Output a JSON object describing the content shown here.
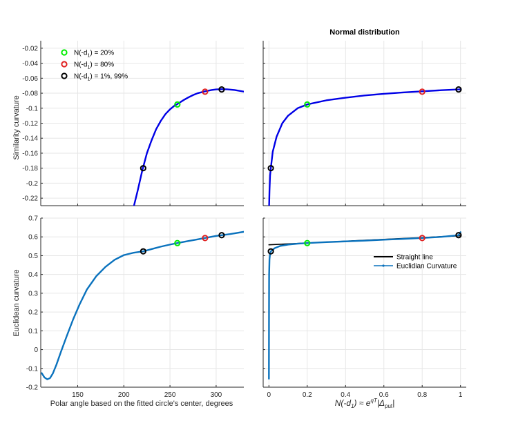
{
  "colors": {
    "curve_dark": "#0000E6",
    "curve_light": "#0A72BD",
    "marker_green": "#00EE00",
    "marker_red": "#E02020",
    "marker_black": "#000000",
    "grid": "#E6E6E6",
    "axis": "#262626",
    "straight_line": "#000000"
  },
  "chart_data": [
    {
      "id": "top-left",
      "type": "line",
      "title": "",
      "xlabel": "",
      "ylabel": "Similarity curvature",
      "xlim": [
        110,
        330
      ],
      "ylim": [
        -0.23,
        -0.01
      ],
      "xticks": [
        150,
        200,
        250,
        300
      ],
      "xtick_labels_visible": false,
      "yticks": [
        -0.22,
        -0.2,
        -0.18,
        -0.16,
        -0.14,
        -0.12,
        -0.1,
        -0.08,
        -0.06,
        -0.04,
        -0.02
      ],
      "ytick_labels": [
        "-0.22",
        "-0.2",
        "-0.18",
        "-0.16",
        "-0.14",
        "-0.12",
        "-0.1",
        "-0.08",
        "-0.06",
        "-0.04",
        "-0.02"
      ],
      "grid": true,
      "series": [
        {
          "color_key": "curve_dark",
          "points": [
            [
              211,
              -0.23
            ],
            [
              215,
              -0.21
            ],
            [
              220,
              -0.183
            ],
            [
              225,
              -0.16
            ],
            [
              230,
              -0.143
            ],
            [
              235,
              -0.128
            ],
            [
              240,
              -0.117
            ],
            [
              245,
              -0.108
            ],
            [
              250,
              -0.1015
            ],
            [
              255,
              -0.0965
            ],
            [
              258,
              -0.0945
            ],
            [
              265,
              -0.089
            ],
            [
              270,
              -0.0855
            ],
            [
              275,
              -0.0825
            ],
            [
              280,
              -0.08
            ],
            [
              288,
              -0.0775
            ],
            [
              295,
              -0.0758
            ],
            [
              300,
              -0.075
            ],
            [
              306,
              -0.0746
            ],
            [
              312,
              -0.0748
            ],
            [
              320,
              -0.0758
            ],
            [
              330,
              -0.0778
            ]
          ]
        }
      ],
      "markers": [
        {
          "x": 221,
          "y": -0.18,
          "color_key": "marker_black"
        },
        {
          "x": 258,
          "y": -0.095,
          "color_key": "marker_green"
        },
        {
          "x": 288,
          "y": -0.078,
          "color_key": "marker_red"
        },
        {
          "x": 306,
          "y": -0.075,
          "color_key": "marker_black"
        }
      ],
      "legend": {
        "position": "top-left",
        "entries": [
          {
            "label_main": "N(-d",
            "label_sub": "1",
            "label_tail": ") = 20%",
            "color_key": "marker_green"
          },
          {
            "label_main": "N(-d",
            "label_sub": "1",
            "label_tail": ") = 80%",
            "color_key": "marker_red"
          },
          {
            "label_main": "N(-d",
            "label_sub": "1",
            "label_tail": ") = 1%, 99%",
            "color_key": "marker_black"
          }
        ]
      }
    },
    {
      "id": "top-right",
      "type": "line",
      "title": "Normal distribution",
      "xlabel": "",
      "ylabel": "",
      "xlim": [
        -0.03,
        1.03
      ],
      "ylim": [
        -0.23,
        -0.01
      ],
      "xticks": [
        0,
        0.2,
        0.4,
        0.6,
        0.8,
        1
      ],
      "xtick_labels_visible": false,
      "yticks": [
        -0.22,
        -0.2,
        -0.18,
        -0.16,
        -0.14,
        -0.12,
        -0.1,
        -0.08,
        -0.06,
        -0.04,
        -0.02
      ],
      "ytick_labels_visible": false,
      "grid": true,
      "series": [
        {
          "color_key": "curve_dark",
          "points": [
            [
              0.001,
              -0.23
            ],
            [
              0.003,
              -0.21
            ],
            [
              0.006,
              -0.19
            ],
            [
              0.01,
              -0.18
            ],
            [
              0.02,
              -0.158
            ],
            [
              0.04,
              -0.138
            ],
            [
              0.07,
              -0.12
            ],
            [
              0.1,
              -0.11
            ],
            [
              0.15,
              -0.1
            ],
            [
              0.2,
              -0.095
            ],
            [
              0.3,
              -0.0895
            ],
            [
              0.4,
              -0.086
            ],
            [
              0.5,
              -0.083
            ],
            [
              0.6,
              -0.0808
            ],
            [
              0.7,
              -0.079
            ],
            [
              0.8,
              -0.0775
            ],
            [
              0.9,
              -0.076
            ],
            [
              0.99,
              -0.075
            ],
            [
              1.0,
              -0.0748
            ]
          ]
        }
      ],
      "markers": [
        {
          "x": 0.01,
          "y": -0.18,
          "color_key": "marker_black"
        },
        {
          "x": 0.2,
          "y": -0.095,
          "color_key": "marker_green"
        },
        {
          "x": 0.8,
          "y": -0.078,
          "color_key": "marker_red"
        },
        {
          "x": 0.99,
          "y": -0.075,
          "color_key": "marker_black"
        }
      ]
    },
    {
      "id": "bottom-left",
      "type": "line",
      "title": "",
      "xlabel": "Polar angle based on the fitted circle's center, degrees",
      "ylabel": "Euclidean curvature",
      "xlim": [
        110,
        330
      ],
      "ylim": [
        -0.2,
        0.7
      ],
      "xticks": [
        150,
        200,
        250,
        300
      ],
      "xtick_labels": [
        "150",
        "200",
        "250",
        "300"
      ],
      "yticks": [
        -0.2,
        -0.1,
        0,
        0.1,
        0.2,
        0.3,
        0.4,
        0.5,
        0.6,
        0.7
      ],
      "ytick_labels": [
        "-0.2",
        "-0.1",
        "0",
        "0.1",
        "0.2",
        "0.3",
        "0.4",
        "0.5",
        "0.6",
        "0.7"
      ],
      "grid": true,
      "series": [
        {
          "color_key": "curve_light",
          "points": [
            [
              111,
              -0.125
            ],
            [
              114,
              -0.148
            ],
            [
              117,
              -0.158
            ],
            [
              120,
              -0.152
            ],
            [
              123,
              -0.128
            ],
            [
              127,
              -0.08
            ],
            [
              132,
              -0.01
            ],
            [
              138,
              0.07
            ],
            [
              145,
              0.16
            ],
            [
              152,
              0.24
            ],
            [
              160,
              0.32
            ],
            [
              170,
              0.39
            ],
            [
              180,
              0.44
            ],
            [
              190,
              0.478
            ],
            [
              200,
              0.503
            ],
            [
              210,
              0.515
            ],
            [
              221,
              0.523
            ],
            [
              230,
              0.535
            ],
            [
              240,
              0.548
            ],
            [
              250,
              0.559
            ],
            [
              258,
              0.567
            ],
            [
              270,
              0.578
            ],
            [
              280,
              0.587
            ],
            [
              288,
              0.594
            ],
            [
              300,
              0.605
            ],
            [
              306,
              0.609
            ],
            [
              315,
              0.615
            ],
            [
              330,
              0.627
            ]
          ]
        }
      ],
      "markers": [
        {
          "x": 221,
          "y": 0.523,
          "color_key": "marker_black"
        },
        {
          "x": 258,
          "y": 0.567,
          "color_key": "marker_green"
        },
        {
          "x": 288,
          "y": 0.594,
          "color_key": "marker_red"
        },
        {
          "x": 306,
          "y": 0.609,
          "color_key": "marker_black"
        }
      ]
    },
    {
      "id": "bottom-right",
      "type": "line",
      "title": "",
      "xlabel_prefix": "N(-d",
      "xlabel_sub": "1",
      "xlabel_mid": ") ≈ e",
      "xlabel_sup": "qT",
      "xlabel_tail": "|Δ",
      "xlabel_sub2": "put",
      "xlabel_end": "|",
      "ylabel": "",
      "xlim": [
        -0.03,
        1.03
      ],
      "ylim": [
        -0.2,
        0.7
      ],
      "xticks": [
        0,
        0.2,
        0.4,
        0.6,
        0.8,
        1
      ],
      "xtick_labels": [
        "0",
        "0.2",
        "0.4",
        "0.6",
        "0.8",
        "1"
      ],
      "yticks": [
        -0.2,
        -0.1,
        0,
        0.1,
        0.2,
        0.3,
        0.4,
        0.5,
        0.6,
        0.7
      ],
      "ytick_labels_visible": false,
      "grid": true,
      "series": [
        {
          "name": "Straight line",
          "color_key": "straight_line",
          "points": [
            [
              0.0,
              0.558
            ],
            [
              1.0,
              0.606
            ]
          ]
        },
        {
          "name": "Euclidian Curvature",
          "color_key": "curve_light",
          "points": [
            [
              0.0,
              -0.155
            ],
            [
              0.0005,
              0.2
            ],
            [
              0.001,
              0.4
            ],
            [
              0.003,
              0.48
            ],
            [
              0.006,
              0.51
            ],
            [
              0.01,
              0.523
            ],
            [
              0.03,
              0.54
            ],
            [
              0.06,
              0.552
            ],
            [
              0.1,
              0.559
            ],
            [
              0.15,
              0.564
            ],
            [
              0.2,
              0.567
            ],
            [
              0.3,
              0.572
            ],
            [
              0.4,
              0.576
            ],
            [
              0.5,
              0.58
            ],
            [
              0.6,
              0.585
            ],
            [
              0.7,
              0.589
            ],
            [
              0.8,
              0.594
            ],
            [
              0.9,
              0.6
            ],
            [
              0.99,
              0.609
            ],
            [
              1.0,
              0.625
            ]
          ]
        }
      ],
      "markers": [
        {
          "x": 0.01,
          "y": 0.523,
          "color_key": "marker_black"
        },
        {
          "x": 0.2,
          "y": 0.567,
          "color_key": "marker_green"
        },
        {
          "x": 0.8,
          "y": 0.594,
          "color_key": "marker_red"
        },
        {
          "x": 0.99,
          "y": 0.609,
          "color_key": "marker_black"
        }
      ],
      "legend": {
        "position": "right-middle",
        "entries": [
          {
            "label": "Straight line",
            "color_key": "straight_line",
            "style": "line"
          },
          {
            "label": "Euclidian Curvature",
            "color_key": "curve_light",
            "style": "line-dot"
          }
        ]
      }
    }
  ]
}
